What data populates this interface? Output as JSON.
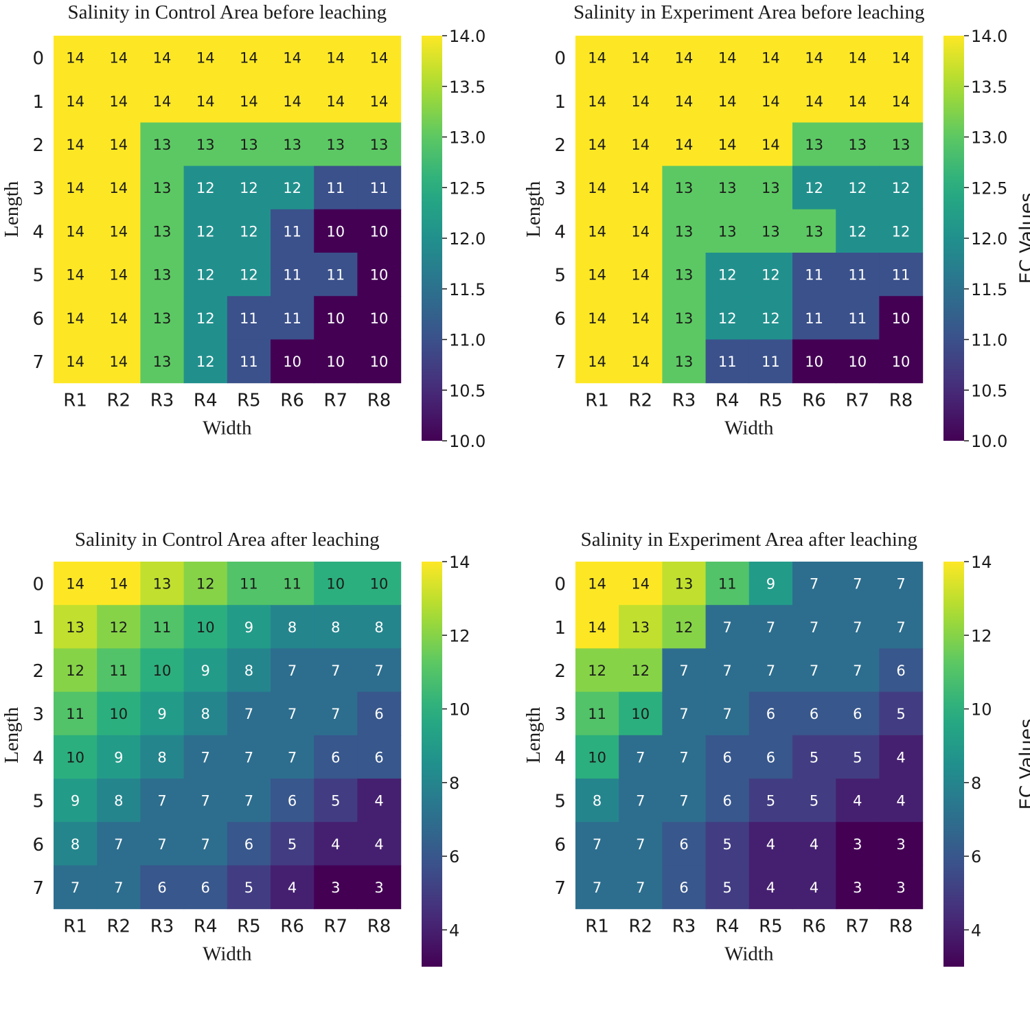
{
  "chart_data": [
    {
      "type": "heatmap",
      "title": "Salinity in Control Area before leaching",
      "xlabel": "Width",
      "ylabel": "Length",
      "x_categories": [
        "R1",
        "R2",
        "R3",
        "R4",
        "R5",
        "R6",
        "R7",
        "R8"
      ],
      "y_categories": [
        "0",
        "1",
        "2",
        "3",
        "4",
        "5",
        "6",
        "7"
      ],
      "values": [
        [
          14,
          14,
          14,
          14,
          14,
          14,
          14,
          14
        ],
        [
          14,
          14,
          14,
          14,
          14,
          14,
          14,
          14
        ],
        [
          14,
          14,
          13,
          13,
          13,
          13,
          13,
          13
        ],
        [
          14,
          14,
          13,
          12,
          12,
          12,
          11,
          11
        ],
        [
          14,
          14,
          13,
          12,
          12,
          11,
          10,
          10
        ],
        [
          14,
          14,
          13,
          12,
          12,
          11,
          11,
          10
        ],
        [
          14,
          14,
          13,
          12,
          11,
          11,
          10,
          10
        ],
        [
          14,
          14,
          13,
          12,
          11,
          10,
          10,
          10
        ]
      ],
      "colorbar": {
        "range": [
          10,
          14
        ],
        "ticks": [
          "14.0",
          "13.5",
          "13.0",
          "12.5",
          "12.0",
          "11.5",
          "11.0",
          "10.5",
          "10.0"
        ],
        "tick_values": [
          14,
          13.5,
          13,
          12.5,
          12,
          11.5,
          11,
          10.5,
          10
        ],
        "label": ""
      },
      "colormap": "viridis"
    },
    {
      "type": "heatmap",
      "title": "Salinity in Experiment Area before leaching",
      "xlabel": "Width",
      "ylabel": "Length",
      "x_categories": [
        "R1",
        "R2",
        "R3",
        "R4",
        "R5",
        "R6",
        "R7",
        "R8"
      ],
      "y_categories": [
        "0",
        "1",
        "2",
        "3",
        "4",
        "5",
        "6",
        "7"
      ],
      "values": [
        [
          14,
          14,
          14,
          14,
          14,
          14,
          14,
          14
        ],
        [
          14,
          14,
          14,
          14,
          14,
          14,
          14,
          14
        ],
        [
          14,
          14,
          14,
          14,
          14,
          13,
          13,
          13
        ],
        [
          14,
          14,
          13,
          13,
          13,
          12,
          12,
          12
        ],
        [
          14,
          14,
          13,
          13,
          13,
          13,
          12,
          12
        ],
        [
          14,
          14,
          13,
          12,
          12,
          11,
          11,
          11
        ],
        [
          14,
          14,
          13,
          12,
          12,
          11,
          11,
          10
        ],
        [
          14,
          14,
          13,
          11,
          11,
          10,
          10,
          10
        ]
      ],
      "colorbar": {
        "range": [
          10,
          14
        ],
        "ticks": [
          "14.0",
          "13.5",
          "13.0",
          "12.5",
          "12.0",
          "11.5",
          "11.0",
          "10.5",
          "10.0"
        ],
        "tick_values": [
          14,
          13.5,
          13,
          12.5,
          12,
          11.5,
          11,
          10.5,
          10
        ],
        "label": "EC Values"
      },
      "colormap": "viridis"
    },
    {
      "type": "heatmap",
      "title": "Salinity in Control Area after leaching",
      "xlabel": "Width",
      "ylabel": "Length",
      "x_categories": [
        "R1",
        "R2",
        "R3",
        "R4",
        "R5",
        "R6",
        "R7",
        "R8"
      ],
      "y_categories": [
        "0",
        "1",
        "2",
        "3",
        "4",
        "5",
        "6",
        "7"
      ],
      "values": [
        [
          14,
          14,
          13,
          12,
          11,
          11,
          10,
          10
        ],
        [
          13,
          12,
          11,
          10,
          9,
          8,
          8,
          8
        ],
        [
          12,
          11,
          10,
          9,
          8,
          7,
          7,
          7
        ],
        [
          11,
          10,
          9,
          8,
          7,
          7,
          7,
          6
        ],
        [
          10,
          9,
          8,
          7,
          7,
          7,
          6,
          6
        ],
        [
          9,
          8,
          7,
          7,
          7,
          6,
          5,
          4
        ],
        [
          8,
          7,
          7,
          7,
          6,
          5,
          4,
          4
        ],
        [
          7,
          7,
          6,
          6,
          5,
          4,
          3,
          3
        ]
      ],
      "colorbar": {
        "range": [
          3,
          14
        ],
        "ticks": [
          "14",
          "12",
          "10",
          "8",
          "6",
          "4"
        ],
        "tick_values": [
          14,
          12,
          10,
          8,
          6,
          4
        ],
        "label": ""
      },
      "colormap": "viridis"
    },
    {
      "type": "heatmap",
      "title": "Salinity in Experiment Area after leaching",
      "xlabel": "Width",
      "ylabel": "Length",
      "x_categories": [
        "R1",
        "R2",
        "R3",
        "R4",
        "R5",
        "R6",
        "R7",
        "R8"
      ],
      "y_categories": [
        "0",
        "1",
        "2",
        "3",
        "4",
        "5",
        "6",
        "7"
      ],
      "values": [
        [
          14,
          14,
          13,
          11,
          9,
          7,
          7,
          7
        ],
        [
          14,
          13,
          12,
          7,
          7,
          7,
          7,
          7
        ],
        [
          12,
          12,
          7,
          7,
          7,
          7,
          7,
          6
        ],
        [
          11,
          10,
          7,
          7,
          6,
          6,
          6,
          5
        ],
        [
          10,
          7,
          7,
          6,
          6,
          5,
          5,
          4
        ],
        [
          8,
          7,
          7,
          6,
          5,
          5,
          4,
          4
        ],
        [
          7,
          7,
          6,
          5,
          4,
          4,
          3,
          3
        ],
        [
          7,
          7,
          6,
          5,
          4,
          4,
          3,
          3
        ]
      ],
      "colorbar": {
        "range": [
          3,
          14
        ],
        "ticks": [
          "14",
          "12",
          "10",
          "8",
          "6",
          "4"
        ],
        "tick_values": [
          14,
          12,
          10,
          8,
          6,
          4
        ],
        "label": "EC Values"
      },
      "colormap": "viridis"
    }
  ]
}
